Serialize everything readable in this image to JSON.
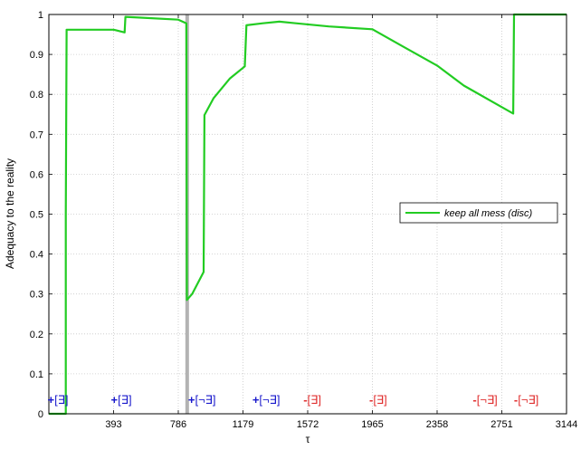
{
  "chart_data": {
    "type": "line",
    "xlabel": "τ",
    "ylabel": "Adequacy to the reality",
    "xlim": [
      0,
      3144
    ],
    "ylim": [
      0,
      1
    ],
    "x_ticks": [
      393,
      786,
      1179,
      1572,
      1965,
      2358,
      2751,
      3144
    ],
    "y_ticks": [
      0,
      0.1,
      0.2,
      0.3,
      0.4,
      0.5,
      0.6,
      0.7,
      0.8,
      0.9,
      1
    ],
    "grid": true,
    "legend_position": "center-right",
    "vertical_marker": {
      "x": 840,
      "color": "#b3b3b3"
    },
    "series": [
      {
        "name": "keep all mess (disc)",
        "color": "#22cc22",
        "points": [
          [
            0,
            0
          ],
          [
            103,
            0
          ],
          [
            103,
            0.5
          ],
          [
            108,
            0.962
          ],
          [
            140,
            0.962
          ],
          [
            393,
            0.962
          ],
          [
            460,
            0.955
          ],
          [
            465,
            0.994
          ],
          [
            560,
            0.992
          ],
          [
            786,
            0.987
          ],
          [
            835,
            0.978
          ],
          [
            838,
            0.285
          ],
          [
            870,
            0.3
          ],
          [
            940,
            0.355
          ],
          [
            945,
            0.748
          ],
          [
            1000,
            0.79
          ],
          [
            1100,
            0.84
          ],
          [
            1190,
            0.87
          ],
          [
            1200,
            0.973
          ],
          [
            1300,
            0.978
          ],
          [
            1400,
            0.982
          ],
          [
            1500,
            0.978
          ],
          [
            1700,
            0.97
          ],
          [
            1965,
            0.963
          ],
          [
            2150,
            0.92
          ],
          [
            2358,
            0.872
          ],
          [
            2520,
            0.822
          ],
          [
            2751,
            0.768
          ],
          [
            2820,
            0.752
          ],
          [
            2825,
            1.0
          ],
          [
            3144,
            1.0
          ]
        ]
      }
    ],
    "annotations": [
      {
        "x": 55,
        "sign": "+",
        "text": "[∃]",
        "color": "#1a1acc"
      },
      {
        "x": 440,
        "sign": "+",
        "text": "[∃]",
        "color": "#1a1acc"
      },
      {
        "x": 930,
        "sign": "+",
        "text": "[¬∃]",
        "color": "#1a1acc"
      },
      {
        "x": 1320,
        "sign": "+",
        "text": "[¬∃]",
        "color": "#1a1acc"
      },
      {
        "x": 1600,
        "sign": "-",
        "text": "[∃]",
        "color": "#e03030"
      },
      {
        "x": 2000,
        "sign": "-",
        "text": "[∃]",
        "color": "#e03030"
      },
      {
        "x": 2650,
        "sign": "-",
        "text": "[¬∃]",
        "color": "#e03030"
      },
      {
        "x": 2900,
        "sign": "-",
        "text": "[¬∃]",
        "color": "#e03030"
      }
    ]
  }
}
